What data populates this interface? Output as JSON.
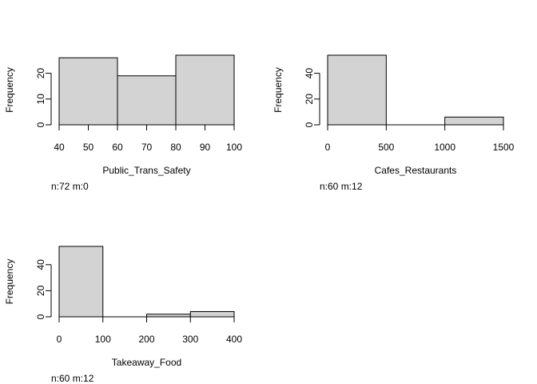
{
  "chart_data": [
    {
      "type": "bar",
      "subtype": "histogram",
      "xlabel": "Public_Trans_Safety",
      "ylabel": "Frequency",
      "note": "n:72 m:0",
      "bins": [
        [
          40,
          60
        ],
        [
          60,
          80
        ],
        [
          80,
          100
        ]
      ],
      "values": [
        26,
        19,
        27
      ],
      "x_ticks": [
        40,
        50,
        60,
        70,
        80,
        90,
        100
      ],
      "y_ticks": [
        0,
        10,
        20
      ],
      "xlim": [
        40,
        100
      ],
      "ylim": [
        0,
        27
      ],
      "grid": false
    },
    {
      "type": "bar",
      "subtype": "histogram",
      "xlabel": "Cafes_Restaurants",
      "ylabel": "Frequency",
      "note": "n:60 m:12",
      "bins": [
        [
          0,
          500
        ],
        [
          500,
          1000
        ],
        [
          1000,
          1500
        ]
      ],
      "values": [
        54,
        0,
        6
      ],
      "x_ticks": [
        0,
        500,
        1000,
        1500
      ],
      "y_ticks": [
        0,
        20,
        40
      ],
      "xlim": [
        0,
        1500
      ],
      "ylim": [
        0,
        54
      ],
      "grid": false
    },
    {
      "type": "bar",
      "subtype": "histogram",
      "xlabel": "Takeaway_Food",
      "ylabel": "Frequency",
      "note": "n:60 m:12",
      "bins": [
        [
          0,
          100
        ],
        [
          100,
          200
        ],
        [
          200,
          300
        ],
        [
          300,
          400
        ]
      ],
      "values": [
        54,
        0,
        2,
        4
      ],
      "x_ticks": [
        0,
        100,
        200,
        300,
        400
      ],
      "y_ticks": [
        0,
        20,
        40
      ],
      "xlim": [
        0,
        400
      ],
      "ylim": [
        0,
        54
      ],
      "grid": false
    }
  ]
}
